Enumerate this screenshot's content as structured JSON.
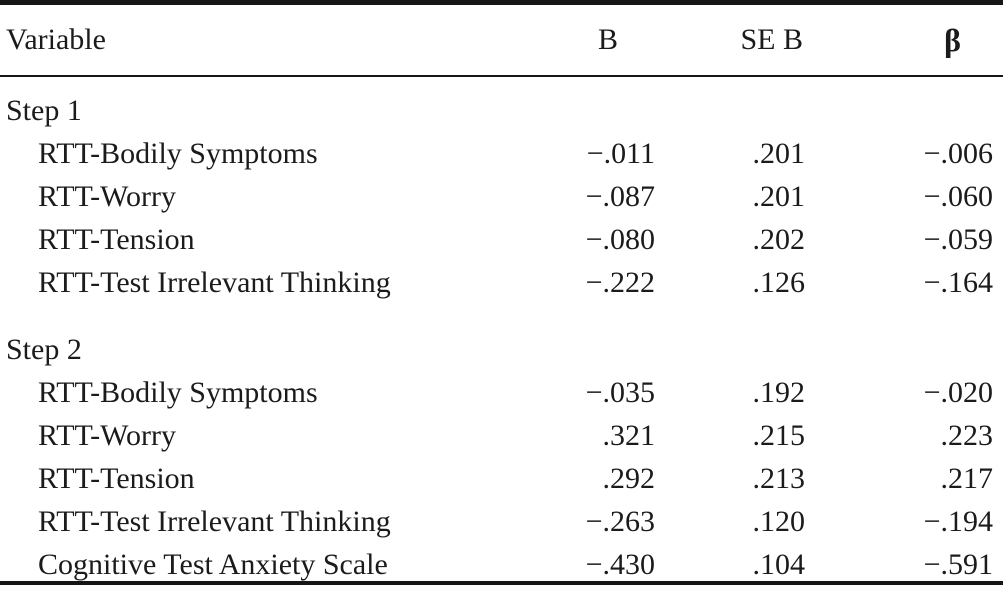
{
  "table": {
    "columns": [
      "Variable",
      "B",
      "SE B",
      "β"
    ],
    "sections": [
      {
        "label": "Step 1",
        "rows": [
          {
            "variable": "RTT-Bodily Symptoms",
            "b": "−.011",
            "se_b": ".201",
            "beta": "−.006"
          },
          {
            "variable": "RTT-Worry",
            "b": "−.087",
            "se_b": ".201",
            "beta": "−.060"
          },
          {
            "variable": "RTT-Tension",
            "b": "−.080",
            "se_b": ".202",
            "beta": "−.059"
          },
          {
            "variable": "RTT-Test Irrelevant Thinking",
            "b": "−.222",
            "se_b": ".126",
            "beta": "−.164"
          }
        ]
      },
      {
        "label": "Step 2",
        "rows": [
          {
            "variable": "RTT-Bodily Symptoms",
            "b": "−.035",
            "se_b": ".192",
            "beta": "−.020"
          },
          {
            "variable": "RTT-Worry",
            "b": ".321",
            "se_b": ".215",
            "beta": ".223"
          },
          {
            "variable": "RTT-Tension",
            "b": ".292",
            "se_b": ".213",
            "beta": ".217"
          },
          {
            "variable": "RTT-Test Irrelevant Thinking",
            "b": "−.263",
            "se_b": ".120",
            "beta": "−.194"
          },
          {
            "variable": "Cognitive Test Anxiety Scale",
            "b": "−.430",
            "se_b": ".104",
            "beta": "−.591"
          }
        ]
      }
    ],
    "colors": {
      "text": "#1b1b1b",
      "rule": "#161616",
      "background": "#ffffff"
    }
  }
}
